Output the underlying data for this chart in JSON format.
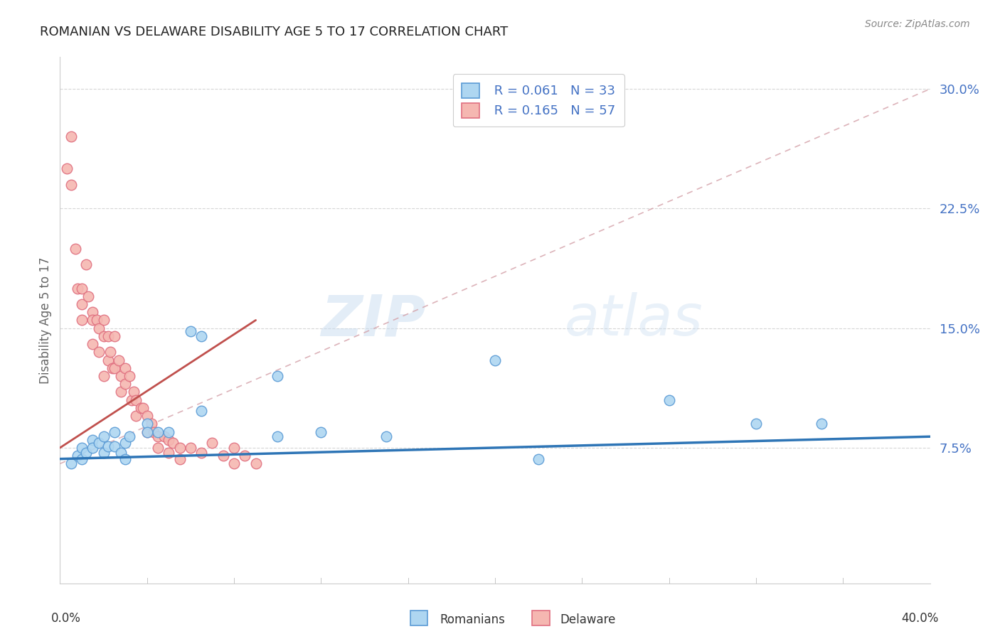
{
  "title": "ROMANIAN VS DELAWARE DISABILITY AGE 5 TO 17 CORRELATION CHART",
  "source": "Source: ZipAtlas.com",
  "ylabel": "Disability Age 5 to 17",
  "xlim": [
    0.0,
    0.4
  ],
  "ylim": [
    -0.01,
    0.32
  ],
  "r_romanians": 0.061,
  "n_romanians": 33,
  "r_delaware": 0.165,
  "n_delaware": 57,
  "legend_label_1": "Romanians",
  "legend_label_2": "Delaware",
  "color_romanians_fill": "#AED6F1",
  "color_romanians_edge": "#5B9BD5",
  "color_delaware_fill": "#F5B7B1",
  "color_delaware_edge": "#E07080",
  "color_line_romanians": "#2E75B6",
  "color_line_delaware": "#C0504D",
  "color_dashed": "#D4A0A8",
  "background_color": "#FFFFFF",
  "grid_color": "#CCCCCC",
  "ytick_color": "#4472C4",
  "romanians_x": [
    0.005,
    0.008,
    0.01,
    0.01,
    0.012,
    0.015,
    0.015,
    0.018,
    0.02,
    0.02,
    0.022,
    0.025,
    0.025,
    0.028,
    0.03,
    0.03,
    0.032,
    0.04,
    0.04,
    0.045,
    0.05,
    0.06,
    0.065,
    0.065,
    0.1,
    0.1,
    0.12,
    0.15,
    0.2,
    0.22,
    0.28,
    0.32,
    0.35
  ],
  "romanians_y": [
    0.065,
    0.07,
    0.075,
    0.068,
    0.072,
    0.08,
    0.075,
    0.078,
    0.082,
    0.072,
    0.076,
    0.085,
    0.076,
    0.072,
    0.078,
    0.068,
    0.082,
    0.09,
    0.085,
    0.085,
    0.085,
    0.148,
    0.145,
    0.098,
    0.12,
    0.082,
    0.085,
    0.082,
    0.13,
    0.068,
    0.105,
    0.09,
    0.09
  ],
  "delaware_x": [
    0.003,
    0.005,
    0.005,
    0.007,
    0.008,
    0.01,
    0.01,
    0.01,
    0.012,
    0.013,
    0.015,
    0.015,
    0.015,
    0.017,
    0.018,
    0.018,
    0.02,
    0.02,
    0.02,
    0.022,
    0.022,
    0.023,
    0.024,
    0.025,
    0.025,
    0.027,
    0.028,
    0.028,
    0.03,
    0.03,
    0.032,
    0.033,
    0.034,
    0.035,
    0.035,
    0.037,
    0.038,
    0.04,
    0.04,
    0.042,
    0.043,
    0.045,
    0.045,
    0.048,
    0.05,
    0.05,
    0.052,
    0.055,
    0.055,
    0.06,
    0.065,
    0.07,
    0.075,
    0.08,
    0.08,
    0.085,
    0.09
  ],
  "delaware_y": [
    0.25,
    0.27,
    0.24,
    0.2,
    0.175,
    0.175,
    0.165,
    0.155,
    0.19,
    0.17,
    0.16,
    0.155,
    0.14,
    0.155,
    0.15,
    0.135,
    0.155,
    0.145,
    0.12,
    0.145,
    0.13,
    0.135,
    0.125,
    0.145,
    0.125,
    0.13,
    0.12,
    0.11,
    0.125,
    0.115,
    0.12,
    0.105,
    0.11,
    0.105,
    0.095,
    0.1,
    0.1,
    0.095,
    0.085,
    0.09,
    0.085,
    0.082,
    0.075,
    0.082,
    0.08,
    0.072,
    0.078,
    0.075,
    0.068,
    0.075,
    0.072,
    0.078,
    0.07,
    0.075,
    0.065,
    0.07,
    0.065
  ],
  "watermark_zip": "ZIP",
  "watermark_atlas": "atlas",
  "reg_line_romanians_x0": 0.0,
  "reg_line_romanians_x1": 0.4,
  "reg_line_romanians_y0": 0.068,
  "reg_line_romanians_y1": 0.082,
  "reg_line_delaware_x0": 0.0,
  "reg_line_delaware_x1": 0.09,
  "reg_line_delaware_y0": 0.075,
  "reg_line_delaware_y1": 0.155,
  "dashed_line_x0": 0.0,
  "dashed_line_x1": 0.4,
  "dashed_line_y0": 0.065,
  "dashed_line_y1": 0.3
}
